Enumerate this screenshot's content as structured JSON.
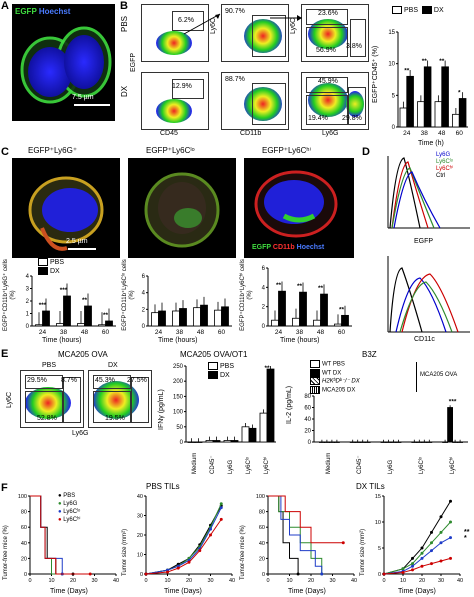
{
  "panels": {
    "A": {
      "letter": "A",
      "egfp": "EGFP",
      "hoechst": "Hoechst",
      "scale": "7.5 µm"
    },
    "B": {
      "letter": "B",
      "row_pbs": "PBS",
      "row_dx": "DX",
      "x_cd45": "CD45",
      "x_cd11b": "CD11b",
      "x_ly6g": "Ly6G",
      "y_egfp": "EGFP",
      "y_ly6c": "Ly6C",
      "pbs_pct_1": "6.2%",
      "pbs_pct_2": "90.7%",
      "pbs_pct_3a": "23.6%",
      "pbs_pct_3b": "56.9%",
      "pbs_pct_3c": "3.8%",
      "dx_pct_1": "12.9%",
      "dx_pct_2": "88.7%",
      "dx_pct_3a": "45.9%",
      "dx_pct_3b": "19.4%",
      "dx_pct_3c": "29.8%",
      "legend_pbs": "PBS",
      "legend_dx": "DX",
      "chart_ylabel": "EGFP⁺CD45⁺ (%)",
      "chart_xlabel": "Time (h)",
      "stars": [
        "**",
        "**",
        "**",
        "*"
      ]
    },
    "C": {
      "letter": "C",
      "title1": "EGFP⁺Ly6G⁺",
      "title2": "EGFP⁺Ly6Cˡᵒ",
      "title3": "EGFP⁺Ly6Cʰⁱ",
      "scale": "2.5 µm",
      "legend_egfp": "EGFP",
      "legend_cd11b": "CD11b",
      "legend_hoechst": "Hoechst",
      "legend_pbs": "PBS",
      "legend_dx": "DX",
      "ylabel1": "EGFP⁺CD11b⁺Ly6G⁺ cells (%)",
      "ylabel2": "EGFP⁺CD11b⁺Ly6Cˡᵒ cells (%)",
      "ylabel3": "EGFP⁺CD11b⁺Ly6Cʰⁱ cells (%)",
      "xlabel": "Time (hours)",
      "stars1": [
        "***",
        "***",
        "**",
        "**"
      ],
      "stars3": [
        "**",
        "**",
        "**",
        "**"
      ]
    },
    "D": {
      "letter": "D",
      "legend": [
        "Ly6G",
        "Ly6Cˡᵒ",
        "Ly6Cʰⁱ",
        "Ctrl"
      ],
      "colors": [
        "#0000cc",
        "#2e8b2e",
        "#cc0000",
        "#000000"
      ],
      "x_egfp": "EGFP",
      "x_cd11c": "CD11c"
    },
    "E": {
      "letter": "E",
      "title_flow": "MCA205 OVA",
      "flow_pbs": "PBS",
      "flow_dx": "DX",
      "y_ly6c": "Ly6C",
      "x_ly6g": "Ly6G",
      "pbs_pct_a": "29.5%",
      "pbs_pct_b": "8.7%",
      "pbs_pct_c": "52.8%",
      "dx_pct_a": "45.3%",
      "dx_pct_b": "27.5%",
      "dx_pct_c": "19.5%",
      "title_ot1": "MCA205 OVA/OT1",
      "legend_pbs": "PBS",
      "legend_dx": "DX",
      "ylabel_ifn": "IFNγ (pg/mL)",
      "title_b3z": "B3Z",
      "legend_b3z": [
        "WT PBS",
        "WT DX",
        "H2KᵇDᵇ⁻/⁻ DX",
        "MCA205 DX"
      ],
      "mca_ova": "MCA205 OVA",
      "ylabel_il2": "IL-2 (pg/mL)",
      "categories": [
        "Medium",
        "CD45⁻",
        "Ly6G",
        "Ly6Cˡᵒ",
        "Ly6Cʰⁱ"
      ],
      "star_ifn": "**",
      "star_il2": "***"
    },
    "F": {
      "letter": "F",
      "title_pbs": "PBS TILs",
      "title_dx": "DX TILs",
      "legend": [
        "PBS",
        "Ly6G",
        "Ly6Cˡᵒ",
        "Ly6Cʰⁱ"
      ],
      "colors": [
        "#000000",
        "#2e8b2e",
        "#1f3cc8",
        "#cc0000"
      ],
      "ylabel_free": "Tumor-free mice (%)",
      "ylabel_size": "Tumor size (mm²)",
      "xlabel": "Time (Days)",
      "stars_side": "***"
    }
  },
  "chart_data": [
    {
      "type": "bar",
      "panel": "B",
      "categories": [
        "24",
        "38",
        "48",
        "60"
      ],
      "series": [
        {
          "name": "PBS",
          "values": [
            3,
            4,
            4,
            2
          ]
        },
        {
          "name": "DX",
          "values": [
            8,
            9.5,
            9.5,
            4.5
          ]
        }
      ],
      "ylabel": "EGFP⁺CD45⁺ (%)",
      "xlabel": "Time (h)",
      "ylim": [
        0,
        15
      ],
      "yticks": [
        0,
        5,
        10,
        15
      ]
    },
    {
      "type": "bar",
      "panel": "C1",
      "categories": [
        "24",
        "38",
        "48",
        "60"
      ],
      "series": [
        {
          "name": "PBS",
          "values": [
            0.1,
            0.2,
            0.2,
            0.1
          ]
        },
        {
          "name": "DX",
          "values": [
            1.2,
            2.4,
            1.6,
            0.4
          ]
        }
      ],
      "ylabel": "EGFP⁺CD11b⁺Ly6G⁺ cells (%)",
      "xlabel": "Time (hours)",
      "ylim": [
        0,
        4
      ],
      "yticks": [
        0,
        1,
        2,
        3,
        4
      ]
    },
    {
      "type": "bar",
      "panel": "C2",
      "categories": [
        "24",
        "38",
        "48",
        "60"
      ],
      "series": [
        {
          "name": "PBS",
          "values": [
            1.6,
            1.8,
            2.2,
            1.9
          ]
        },
        {
          "name": "DX",
          "values": [
            1.8,
            2.1,
            2.5,
            2.3
          ]
        }
      ],
      "ylabel": "EGFP⁺CD11b⁺Ly6Cˡᵒ cells (%)",
      "xlabel": "Time (hours)",
      "ylim": [
        0,
        6
      ],
      "yticks": [
        0,
        2,
        4,
        6
      ]
    },
    {
      "type": "bar",
      "panel": "C3",
      "categories": [
        "24",
        "38",
        "48",
        "60"
      ],
      "series": [
        {
          "name": "PBS",
          "values": [
            0.6,
            0.8,
            0.6,
            0.2
          ]
        },
        {
          "name": "DX",
          "values": [
            3.6,
            3.5,
            3.3,
            1.1
          ]
        }
      ],
      "ylabel": "EGFP⁺CD11b⁺Ly6Cʰⁱ cells (%)",
      "xlabel": "Time (hours)",
      "ylim": [
        0,
        6
      ],
      "yticks": [
        0,
        2,
        4,
        6
      ]
    },
    {
      "type": "bar",
      "panel": "E-IFN",
      "categories": [
        "Medium",
        "CD45⁻",
        "Ly6G",
        "Ly6Cˡᵒ",
        "Ly6Cʰⁱ"
      ],
      "series": [
        {
          "name": "PBS",
          "values": [
            0,
            5,
            5,
            50,
            95
          ]
        },
        {
          "name": "DX",
          "values": [
            0,
            5,
            5,
            45,
            240
          ]
        }
      ],
      "ylabel": "IFNγ (pg/mL)",
      "ylim": [
        0,
        250
      ],
      "yticks": [
        0,
        50,
        100,
        150,
        200,
        250
      ]
    },
    {
      "type": "bar",
      "panel": "E-IL2",
      "categories": [
        "Medium",
        "CD45⁻",
        "Ly6G",
        "Ly6Cˡᵒ",
        "Ly6Cʰⁱ"
      ],
      "series": [
        {
          "name": "WT PBS",
          "values": [
            0,
            0,
            0,
            0,
            0
          ]
        },
        {
          "name": "WT DX",
          "values": [
            0,
            0,
            0,
            0,
            60
          ]
        },
        {
          "name": "H2KᵇDᵇ⁻/⁻ DX",
          "values": [
            0,
            0,
            0,
            0,
            0
          ]
        },
        {
          "name": "MCA205 DX",
          "values": [
            0,
            0,
            0,
            0,
            0
          ]
        }
      ],
      "ylabel": "IL-2 (pg/mL)",
      "ylim": [
        0,
        80
      ],
      "yticks": [
        0,
        20,
        40,
        60,
        80
      ]
    },
    {
      "type": "line",
      "panel": "F-PBS-free",
      "x_ticks": [
        0,
        10,
        20,
        30,
        40
      ],
      "y_ticks": [
        0,
        20,
        40,
        60,
        80,
        100
      ],
      "series": [
        {
          "name": "PBS",
          "x": [
            0,
            5,
            8,
            12,
            20
          ],
          "y": [
            100,
            60,
            20,
            0,
            0
          ]
        },
        {
          "name": "Ly6G",
          "x": [
            0,
            5,
            7,
            10,
            15
          ],
          "y": [
            100,
            60,
            20,
            0,
            0
          ]
        },
        {
          "name": "Ly6Cˡᵒ",
          "x": [
            0,
            5,
            7,
            12,
            15
          ],
          "y": [
            100,
            60,
            20,
            20,
            0
          ]
        },
        {
          "name": "Ly6Cʰⁱ",
          "x": [
            0,
            5,
            7,
            12,
            28
          ],
          "y": [
            100,
            60,
            20,
            0,
            0
          ]
        }
      ],
      "ylabel": "Tumor-free mice (%)",
      "xlabel": "Time (Days)",
      "xlim": [
        0,
        40
      ],
      "ylim": [
        0,
        100
      ]
    },
    {
      "type": "line",
      "panel": "F-PBS-size",
      "x_ticks": [
        0,
        10,
        20,
        30,
        40
      ],
      "y_ticks": [
        0,
        10,
        20,
        30,
        40
      ],
      "series": [
        {
          "name": "PBS",
          "x": [
            0,
            10,
            15,
            20,
            25,
            30,
            35
          ],
          "y": [
            0,
            2,
            5,
            8,
            15,
            25,
            35
          ]
        },
        {
          "name": "Ly6G",
          "x": [
            0,
            10,
            15,
            20,
            25,
            30,
            35
          ],
          "y": [
            0,
            2,
            4,
            8,
            14,
            24,
            36
          ]
        },
        {
          "name": "Ly6Cˡᵒ",
          "x": [
            0,
            10,
            15,
            20,
            25,
            30,
            35
          ],
          "y": [
            0,
            2,
            4,
            7,
            13,
            23,
            34
          ]
        },
        {
          "name": "Ly6Cʰⁱ",
          "x": [
            0,
            10,
            15,
            20,
            25,
            30,
            35
          ],
          "y": [
            0,
            1,
            3,
            6,
            12,
            20,
            28
          ]
        }
      ],
      "ylabel": "Tumor size (mm²)",
      "xlabel": "Time (Days)",
      "xlim": [
        0,
        40
      ],
      "ylim": [
        0,
        40
      ]
    },
    {
      "type": "line",
      "panel": "F-DX-free",
      "x_ticks": [
        0,
        10,
        20,
        30,
        40
      ],
      "y_ticks": [
        0,
        20,
        40,
        60,
        80,
        100
      ],
      "series": [
        {
          "name": "PBS",
          "x": [
            0,
            5,
            7,
            10,
            14
          ],
          "y": [
            100,
            80,
            40,
            20,
            0
          ]
        },
        {
          "name": "Ly6G",
          "x": [
            0,
            5,
            10,
            15,
            20,
            25
          ],
          "y": [
            100,
            80,
            60,
            40,
            20,
            0
          ]
        },
        {
          "name": "Ly6Cˡᵒ",
          "x": [
            0,
            6,
            10,
            15,
            22,
            25
          ],
          "y": [
            100,
            70,
            50,
            30,
            10,
            0
          ]
        },
        {
          "name": "Ly6Cʰⁱ",
          "x": [
            0,
            8,
            15,
            20,
            35
          ],
          "y": [
            100,
            80,
            60,
            40,
            40
          ]
        }
      ],
      "ylabel": "Tumor-free mice (%)",
      "xlabel": "Time (Days)",
      "xlim": [
        0,
        40
      ],
      "ylim": [
        0,
        100
      ]
    },
    {
      "type": "line",
      "panel": "F-DX-size",
      "x_ticks": [
        0,
        10,
        20,
        30,
        40
      ],
      "y_ticks": [
        0,
        5,
        10,
        15
      ],
      "series": [
        {
          "name": "PBS",
          "x": [
            0,
            10,
            15,
            20,
            25,
            30,
            35
          ],
          "y": [
            0,
            1,
            3,
            5,
            8,
            11,
            14
          ]
        },
        {
          "name": "Ly6G",
          "x": [
            0,
            10,
            15,
            20,
            25,
            30,
            35
          ],
          "y": [
            0,
            1,
            2,
            4,
            6,
            8,
            10
          ]
        },
        {
          "name": "Ly6Cˡᵒ",
          "x": [
            0,
            10,
            15,
            20,
            25,
            30,
            35
          ],
          "y": [
            0,
            0.5,
            1.5,
            3,
            4.5,
            6,
            7
          ]
        },
        {
          "name": "Ly6Cʰⁱ",
          "x": [
            0,
            10,
            15,
            20,
            25,
            30,
            35
          ],
          "y": [
            0,
            0.3,
            0.8,
            1.5,
            2,
            2.5,
            3
          ]
        }
      ],
      "ylabel": "Tumor size (mm²)",
      "xlabel": "Time (Days)",
      "xlim": [
        0,
        40
      ],
      "ylim": [
        0,
        15
      ]
    }
  ]
}
